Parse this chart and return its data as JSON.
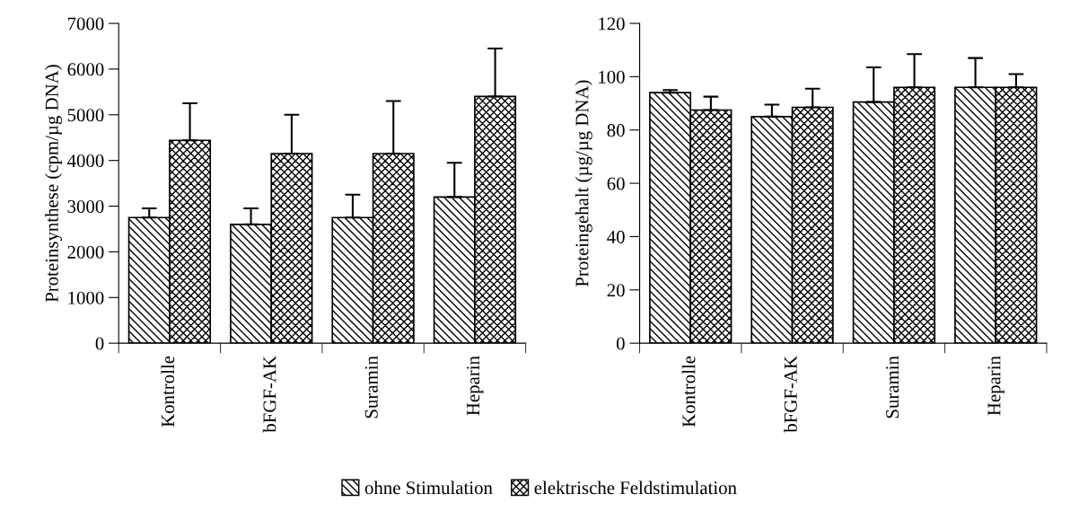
{
  "chart_data": [
    {
      "type": "bar",
      "ylabel": "Proteinsynthese (cpm/µg DNA)",
      "categories": [
        "Kontrolle",
        "bFGF-AK",
        "Suramin",
        "Heparin"
      ],
      "series": [
        {
          "name": "ohne Stimulation",
          "color": "#000000",
          "values": [
            2750,
            2600,
            2750,
            3200
          ],
          "errors": [
            [
              2750,
              2950
            ],
            [
              2600,
              2950
            ],
            [
              2750,
              3250
            ],
            [
              3200,
              3950
            ]
          ]
        },
        {
          "name": "elektrische Feldstimulation",
          "color": "#000000",
          "values": [
            4440,
            4150,
            4150,
            5400
          ],
          "errors": [
            [
              4440,
              5250
            ],
            [
              4150,
              5000
            ],
            [
              4150,
              5300
            ],
            [
              5400,
              6450
            ]
          ]
        }
      ],
      "ylim": [
        0,
        7000
      ],
      "yticks": [
        0,
        1000,
        2000,
        3000,
        4000,
        5000,
        6000,
        7000
      ],
      "grid": false,
      "legend": "bottom"
    },
    {
      "type": "bar",
      "ylabel": "Proteingehalt (µg/µg DNA)",
      "categories": [
        "Kontrolle",
        "bFGF-AK",
        "Suramin",
        "Heparin"
      ],
      "series": [
        {
          "color": "#000000",
          "values": [
            94,
            85,
            90.5,
            96
          ],
          "errors": [
            [
              94,
              95
            ],
            [
              85,
              89.5
            ],
            [
              90.5,
              103.5
            ],
            [
              96,
              107
            ]
          ]
        },
        {
          "color": "#000000",
          "values": [
            87.5,
            88.5,
            96,
            96
          ],
          "errors": [
            [
              87.5,
              92.5
            ],
            [
              88.5,
              95.5
            ],
            [
              96,
              108.5
            ],
            [
              96,
              101
            ]
          ]
        }
      ],
      "ylim": [
        0,
        120
      ],
      "yticks": [
        0,
        20,
        40,
        60,
        80,
        100,
        120
      ],
      "grid": false
    }
  ]
}
